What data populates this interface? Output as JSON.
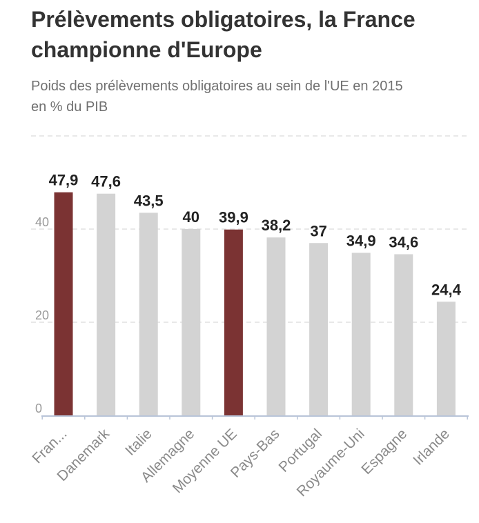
{
  "title": "Prélèvements obligatoires, la France championne d'Europe",
  "subtitle": "Poids des prélèvements obligatoires au sein de l'UE en 2015 en % du PIB",
  "chart_data": {
    "type": "bar",
    "categories": [
      "Fran...",
      "Danemark",
      "Italie",
      "Allemagne",
      "Moyenne UE",
      "Pays-Bas",
      "Portugal",
      "Royaume-Uni",
      "Espagne",
      "Irlande"
    ],
    "values": [
      47.9,
      47.6,
      43.5,
      40,
      39.9,
      38.2,
      37,
      34.9,
      34.6,
      24.4
    ],
    "value_labels": [
      "47,9",
      "47,6",
      "43,5",
      "40",
      "39,9",
      "38,2",
      "37",
      "34,9",
      "34,6",
      "24,4"
    ],
    "highlighted": [
      "Fran...",
      "Moyenne UE"
    ],
    "yticks": [
      0,
      20,
      40,
      60
    ],
    "ytick_labels": [
      "0",
      "20",
      "40",
      ""
    ],
    "ylim": [
      0,
      60
    ],
    "xlabel": "",
    "ylabel": "",
    "grid": true,
    "colors": {
      "highlight": "#7b3333",
      "default": "#d3d3d3",
      "grid": "#e0e0e0",
      "axis": "#b8c4d8"
    }
  }
}
